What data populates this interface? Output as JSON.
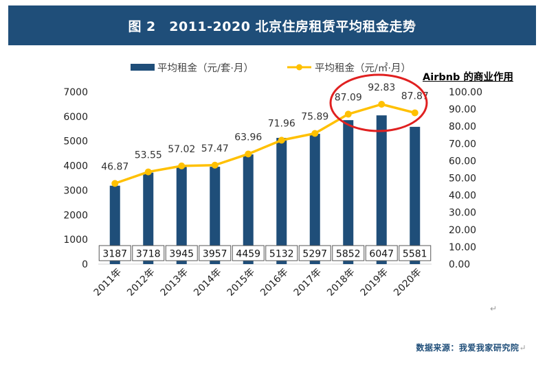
{
  "title": "图 2　2011-2020 北京住房租赁平均租金走势",
  "annotation": "Airbnb 的商业作用",
  "source": "数据来源：我爱我家研究院",
  "return_mark": "↵",
  "colors": {
    "bar": "#1f4e79",
    "line": "#ffc000",
    "circle": "#e02020",
    "header_bg": "#1f4e79"
  },
  "chart_data": {
    "type": "bar+line",
    "categories": [
      "2011年",
      "2012年",
      "2013年",
      "2014年",
      "2015年",
      "2016年",
      "2017年",
      "2018年",
      "2019年",
      "2020年"
    ],
    "series": [
      {
        "name": "平均租金（元/套·月）",
        "type": "bar",
        "axis": "left",
        "values": [
          3187,
          3718,
          3945,
          3957,
          4459,
          5132,
          5297,
          5852,
          6047,
          5581
        ]
      },
      {
        "name": "平均租金（元/㎡·月）",
        "type": "line",
        "axis": "right",
        "values": [
          46.87,
          53.55,
          57.02,
          57.47,
          63.96,
          71.96,
          75.89,
          87.09,
          92.83,
          87.87
        ]
      }
    ],
    "left_axis": {
      "ylim": [
        0,
        7000
      ],
      "ticks": [
        "0",
        "1000",
        "2000",
        "3000",
        "4000",
        "5000",
        "6000",
        "7000"
      ]
    },
    "right_axis": {
      "ylim": [
        0,
        100
      ],
      "ticks": [
        "0.00",
        "10.00",
        "20.00",
        "30.00",
        "40.00",
        "50.00",
        "60.00",
        "70.00",
        "80.00",
        "90.00",
        "100.00"
      ]
    },
    "legend": "top-center",
    "grid": false,
    "highlight": {
      "type": "circle",
      "around": [
        "2018年",
        "2019年",
        "2020年"
      ]
    }
  }
}
